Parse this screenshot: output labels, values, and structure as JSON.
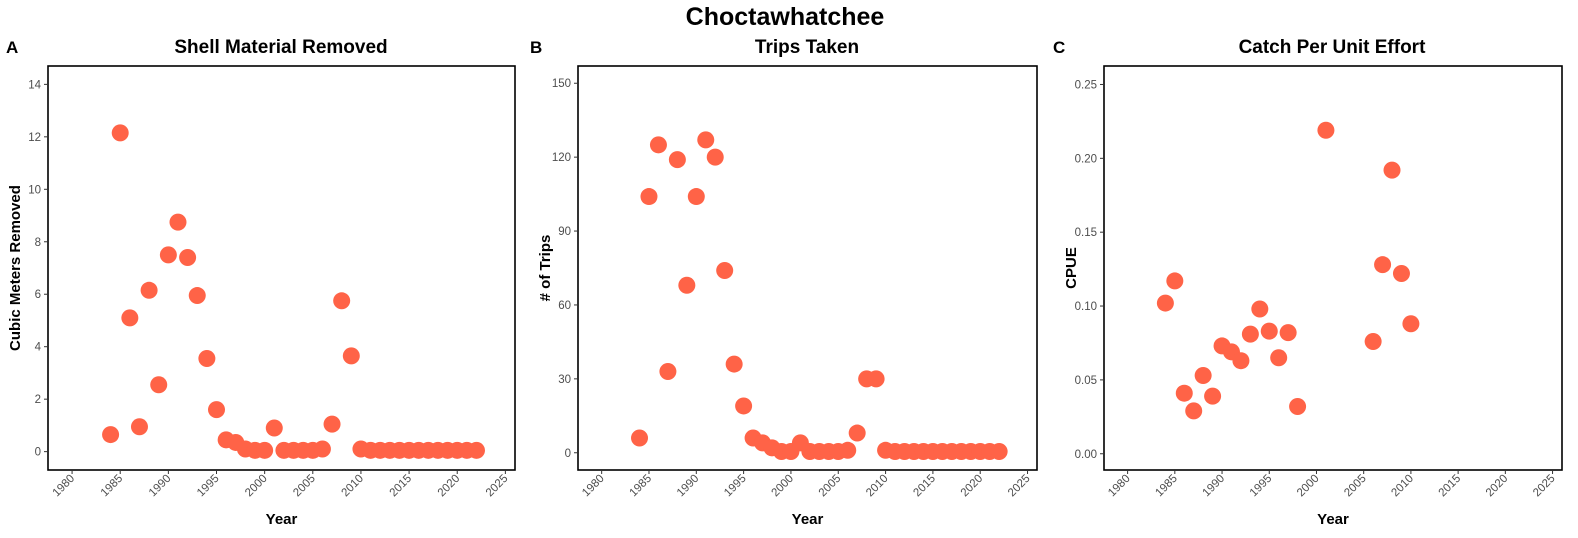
{
  "title": "Choctawhatchee",
  "colors": {
    "point": "#FF6347",
    "axis": "#000000",
    "tick_text": "#4d4d4d"
  },
  "chart_data": [
    {
      "type": "scatter",
      "tag": "A",
      "title": "Shell Material Removed",
      "xlabel": "Year",
      "ylabel": "Cubic Meters Removed",
      "xlim": [
        1977.5,
        2026
      ],
      "ylim": [
        -0.7,
        14.7
      ],
      "xticks": [
        1980,
        1985,
        1990,
        1995,
        2000,
        2005,
        2010,
        2015,
        2020,
        2025
      ],
      "yticks": [
        0,
        2,
        4,
        6,
        8,
        10,
        12,
        14
      ],
      "grid": false,
      "points": [
        {
          "x": 1984,
          "y": 0.65
        },
        {
          "x": 1985,
          "y": 12.15
        },
        {
          "x": 1986,
          "y": 5.1
        },
        {
          "x": 1987,
          "y": 0.95
        },
        {
          "x": 1988,
          "y": 6.15
        },
        {
          "x": 1989,
          "y": 2.55
        },
        {
          "x": 1990,
          "y": 7.5
        },
        {
          "x": 1991,
          "y": 8.75
        },
        {
          "x": 1992,
          "y": 7.4
        },
        {
          "x": 1993,
          "y": 5.95
        },
        {
          "x": 1994,
          "y": 3.55
        },
        {
          "x": 1995,
          "y": 1.6
        },
        {
          "x": 1996,
          "y": 0.45
        },
        {
          "x": 1997,
          "y": 0.35
        },
        {
          "x": 1998,
          "y": 0.1
        },
        {
          "x": 1999,
          "y": 0.05
        },
        {
          "x": 2000,
          "y": 0.05
        },
        {
          "x": 2001,
          "y": 0.9
        },
        {
          "x": 2002,
          "y": 0.05
        },
        {
          "x": 2003,
          "y": 0.05
        },
        {
          "x": 2004,
          "y": 0.05
        },
        {
          "x": 2005,
          "y": 0.05
        },
        {
          "x": 2006,
          "y": 0.1
        },
        {
          "x": 2007,
          "y": 1.05
        },
        {
          "x": 2008,
          "y": 5.75
        },
        {
          "x": 2009,
          "y": 3.65
        },
        {
          "x": 2010,
          "y": 0.1
        },
        {
          "x": 2011,
          "y": 0.05
        },
        {
          "x": 2012,
          "y": 0.05
        },
        {
          "x": 2013,
          "y": 0.05
        },
        {
          "x": 2014,
          "y": 0.05
        },
        {
          "x": 2015,
          "y": 0.05
        },
        {
          "x": 2016,
          "y": 0.05
        },
        {
          "x": 2017,
          "y": 0.05
        },
        {
          "x": 2018,
          "y": 0.05
        },
        {
          "x": 2019,
          "y": 0.05
        },
        {
          "x": 2020,
          "y": 0.05
        },
        {
          "x": 2021,
          "y": 0.05
        },
        {
          "x": 2022,
          "y": 0.05
        }
      ]
    },
    {
      "type": "scatter",
      "tag": "B",
      "title": "Trips Taken",
      "xlabel": "Year",
      "ylabel": "# of Trips",
      "xlim": [
        1977.5,
        2026
      ],
      "ylim": [
        -7,
        157
      ],
      "xticks": [
        1980,
        1985,
        1990,
        1995,
        2000,
        2005,
        2010,
        2015,
        2020,
        2025
      ],
      "yticks": [
        0,
        30,
        60,
        90,
        120,
        150
      ],
      "grid": false,
      "points": [
        {
          "x": 1984,
          "y": 6
        },
        {
          "x": 1985,
          "y": 104
        },
        {
          "x": 1986,
          "y": 125
        },
        {
          "x": 1987,
          "y": 33
        },
        {
          "x": 1988,
          "y": 119
        },
        {
          "x": 1989,
          "y": 68
        },
        {
          "x": 1990,
          "y": 104
        },
        {
          "x": 1991,
          "y": 127
        },
        {
          "x": 1992,
          "y": 120
        },
        {
          "x": 1993,
          "y": 74
        },
        {
          "x": 1994,
          "y": 36
        },
        {
          "x": 1995,
          "y": 19
        },
        {
          "x": 1996,
          "y": 6
        },
        {
          "x": 1997,
          "y": 4
        },
        {
          "x": 1998,
          "y": 2
        },
        {
          "x": 1999,
          "y": 0.5
        },
        {
          "x": 2000,
          "y": 0.5
        },
        {
          "x": 2001,
          "y": 4
        },
        {
          "x": 2002,
          "y": 0.5
        },
        {
          "x": 2003,
          "y": 0.5
        },
        {
          "x": 2004,
          "y": 0.5
        },
        {
          "x": 2005,
          "y": 0.5
        },
        {
          "x": 2006,
          "y": 1
        },
        {
          "x": 2007,
          "y": 8
        },
        {
          "x": 2008,
          "y": 30
        },
        {
          "x": 2009,
          "y": 30
        },
        {
          "x": 2010,
          "y": 1
        },
        {
          "x": 2011,
          "y": 0.5
        },
        {
          "x": 2012,
          "y": 0.5
        },
        {
          "x": 2013,
          "y": 0.5
        },
        {
          "x": 2014,
          "y": 0.5
        },
        {
          "x": 2015,
          "y": 0.5
        },
        {
          "x": 2016,
          "y": 0.5
        },
        {
          "x": 2017,
          "y": 0.5
        },
        {
          "x": 2018,
          "y": 0.5
        },
        {
          "x": 2019,
          "y": 0.5
        },
        {
          "x": 2020,
          "y": 0.5
        },
        {
          "x": 2021,
          "y": 0.5
        },
        {
          "x": 2022,
          "y": 0.5
        }
      ]
    },
    {
      "type": "scatter",
      "tag": "C",
      "title": "Catch Per Unit Effort",
      "xlabel": "Year",
      "ylabel": "CPUE",
      "xlim": [
        1977.5,
        2026
      ],
      "ylim": [
        -0.011,
        0.2625
      ],
      "xticks": [
        1980,
        1985,
        1990,
        1995,
        2000,
        2005,
        2010,
        2015,
        2020,
        2025
      ],
      "yticks": [
        0.0,
        0.05,
        0.1,
        0.15,
        0.2,
        0.25
      ],
      "ytick_labels": [
        "0.00",
        "0.05",
        "0.10",
        "0.15",
        "0.20",
        "0.25"
      ],
      "grid": false,
      "points": [
        {
          "x": 1984,
          "y": 0.102
        },
        {
          "x": 1985,
          "y": 0.117
        },
        {
          "x": 1986,
          "y": 0.041
        },
        {
          "x": 1987,
          "y": 0.029
        },
        {
          "x": 1988,
          "y": 0.053
        },
        {
          "x": 1989,
          "y": 0.039
        },
        {
          "x": 1990,
          "y": 0.073
        },
        {
          "x": 1991,
          "y": 0.069
        },
        {
          "x": 1992,
          "y": 0.063
        },
        {
          "x": 1993,
          "y": 0.081
        },
        {
          "x": 1994,
          "y": 0.098
        },
        {
          "x": 1995,
          "y": 0.083
        },
        {
          "x": 1996,
          "y": 0.065
        },
        {
          "x": 1997,
          "y": 0.082
        },
        {
          "x": 1998,
          "y": 0.032
        },
        {
          "x": 2001,
          "y": 0.219
        },
        {
          "x": 2006,
          "y": 0.076
        },
        {
          "x": 2007,
          "y": 0.128
        },
        {
          "x": 2008,
          "y": 0.192
        },
        {
          "x": 2009,
          "y": 0.122
        },
        {
          "x": 2010,
          "y": 0.088
        }
      ]
    }
  ]
}
